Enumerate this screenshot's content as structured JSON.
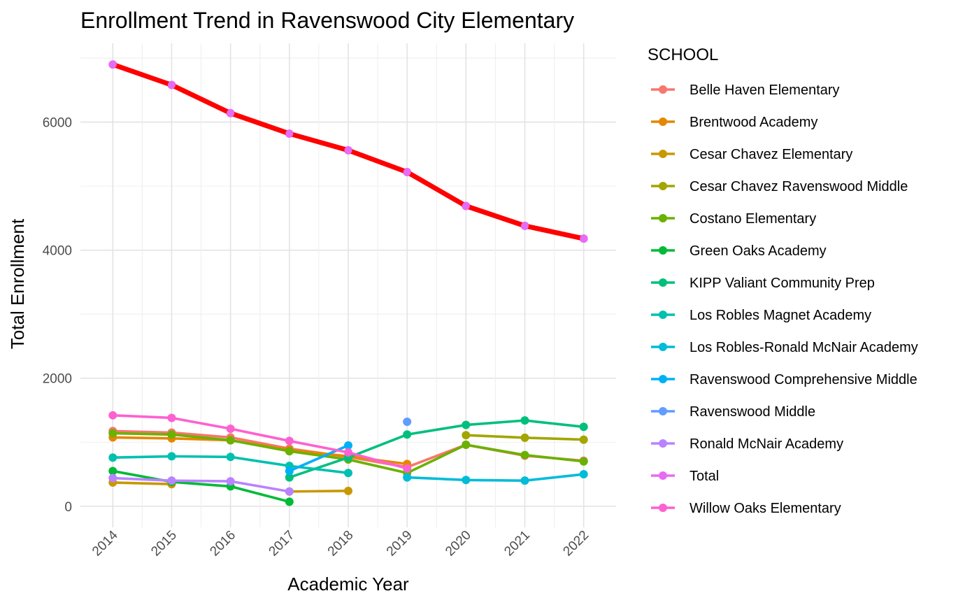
{
  "chart_data": {
    "type": "line",
    "title": "Enrollment Trend in Ravenswood City Elementary",
    "xlabel": "Academic Year",
    "ylabel": "Total Enrollment",
    "legend_title": "SCHOOL",
    "legend_position": "right",
    "grid": true,
    "x": [
      2014,
      2015,
      2016,
      2017,
      2018,
      2019,
      2020,
      2021,
      2022
    ],
    "xlim": [
      2013.45,
      2022.55
    ],
    "ylim": [
      -330,
      7230
    ],
    "yticks": [
      0,
      2000,
      4000,
      6000
    ],
    "series": [
      {
        "name": "Belle Haven Elementary",
        "color": "#F8766D",
        "values": [
          1175,
          1150,
          1075,
          900,
          770,
          610,
          960,
          790,
          710
        ]
      },
      {
        "name": "Brentwood Academy",
        "color": "#E58700",
        "values": [
          1075,
          1060,
          1030,
          880,
          780,
          660,
          null,
          null,
          null
        ]
      },
      {
        "name": "Cesar Chavez Elementary",
        "color": "#C99800",
        "values": [
          370,
          345,
          null,
          230,
          240,
          null,
          null,
          null,
          null
        ]
      },
      {
        "name": "Cesar Chavez Ravenswood Middle",
        "color": "#A3A500",
        "values": [
          null,
          null,
          null,
          null,
          null,
          null,
          1110,
          1070,
          1040
        ]
      },
      {
        "name": "Costano Elementary",
        "color": "#6BB100",
        "values": [
          1140,
          1120,
          1030,
          860,
          730,
          520,
          960,
          800,
          700
        ]
      },
      {
        "name": "Green Oaks Academy",
        "color": "#00BA38",
        "values": [
          550,
          380,
          310,
          70,
          null,
          null,
          null,
          null,
          null
        ]
      },
      {
        "name": "KIPP Valiant Community Prep",
        "color": "#00BF7D",
        "values": [
          null,
          null,
          null,
          450,
          760,
          1120,
          1270,
          1340,
          1240
        ]
      },
      {
        "name": "Los Robles Magnet Academy",
        "color": "#00C0AF",
        "values": [
          760,
          780,
          770,
          630,
          520,
          null,
          null,
          null,
          null
        ]
      },
      {
        "name": "Los Robles-Ronald McNair Academy",
        "color": "#00BCD8",
        "values": [
          null,
          null,
          null,
          null,
          null,
          450,
          410,
          400,
          500
        ]
      },
      {
        "name": "Ravenswood Comprehensive Middle",
        "color": "#00B0F6",
        "values": [
          null,
          null,
          null,
          550,
          950,
          null,
          null,
          null,
          null
        ]
      },
      {
        "name": "Ravenswood Middle",
        "color": "#619CFF",
        "values": [
          null,
          null,
          null,
          null,
          null,
          1320,
          null,
          null,
          null
        ]
      },
      {
        "name": "Ronald McNair Academy",
        "color": "#B983FF",
        "values": [
          440,
          400,
          390,
          230,
          null,
          null,
          null,
          null,
          null
        ]
      },
      {
        "name": "Total",
        "color": "#E76BF3",
        "values": [
          6900,
          6580,
          6140,
          5820,
          5560,
          5220,
          4690,
          4380,
          4180
        ]
      },
      {
        "name": "Willow Oaks Elementary",
        "color": "#FD61D1",
        "values": [
          1420,
          1380,
          1210,
          1020,
          840,
          590,
          null,
          null,
          null
        ]
      }
    ],
    "highlight": {
      "series": "Total",
      "color": "#FF0000"
    }
  }
}
